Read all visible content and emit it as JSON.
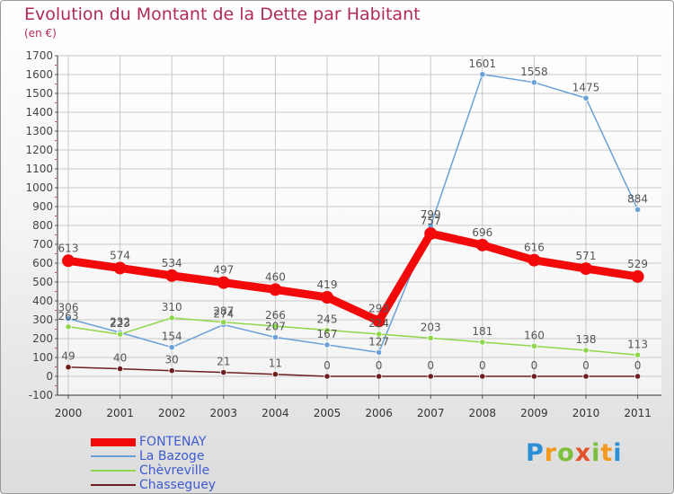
{
  "chart_data": {
    "type": "line",
    "title": "Evolution du Montant de la Dette par Habitant",
    "subtitle": "(en €)",
    "categories": [
      "2000",
      "2001",
      "2002",
      "2003",
      "2004",
      "2005",
      "2006",
      "2007",
      "2008",
      "2009",
      "2010",
      "2011"
    ],
    "ylim": [
      -100,
      1700
    ],
    "yticks": [
      -100,
      0,
      100,
      200,
      300,
      400,
      500,
      600,
      700,
      800,
      900,
      1000,
      1100,
      1200,
      1300,
      1400,
      1500,
      1600,
      1700
    ],
    "grid": true,
    "legend_position": "bottom-left",
    "series": [
      {
        "name": "FONTENAY",
        "color": "#f20a0a",
        "values": [
          613,
          574,
          534,
          497,
          460,
          419,
          293,
          757,
          696,
          616,
          571,
          529
        ]
      },
      {
        "name": "La Bazoge",
        "color": "#6aa0d8",
        "values": [
          306,
          232,
          154,
          274,
          207,
          167,
          127,
          799,
          1601,
          1558,
          1475,
          884
        ]
      },
      {
        "name": "Chèvreville",
        "color": "#8fd74a",
        "values": [
          263,
          223,
          310,
          287,
          266,
          245,
          224,
          203,
          181,
          160,
          138,
          113
        ]
      },
      {
        "name": "Chasseguey",
        "color": "#6e1e1e",
        "values": [
          49,
          40,
          30,
          21,
          11,
          0,
          0,
          0,
          0,
          0,
          0,
          0
        ]
      }
    ]
  },
  "logo": {
    "letters": [
      "P",
      "r",
      "o",
      "x",
      "i",
      "t",
      "i"
    ]
  }
}
